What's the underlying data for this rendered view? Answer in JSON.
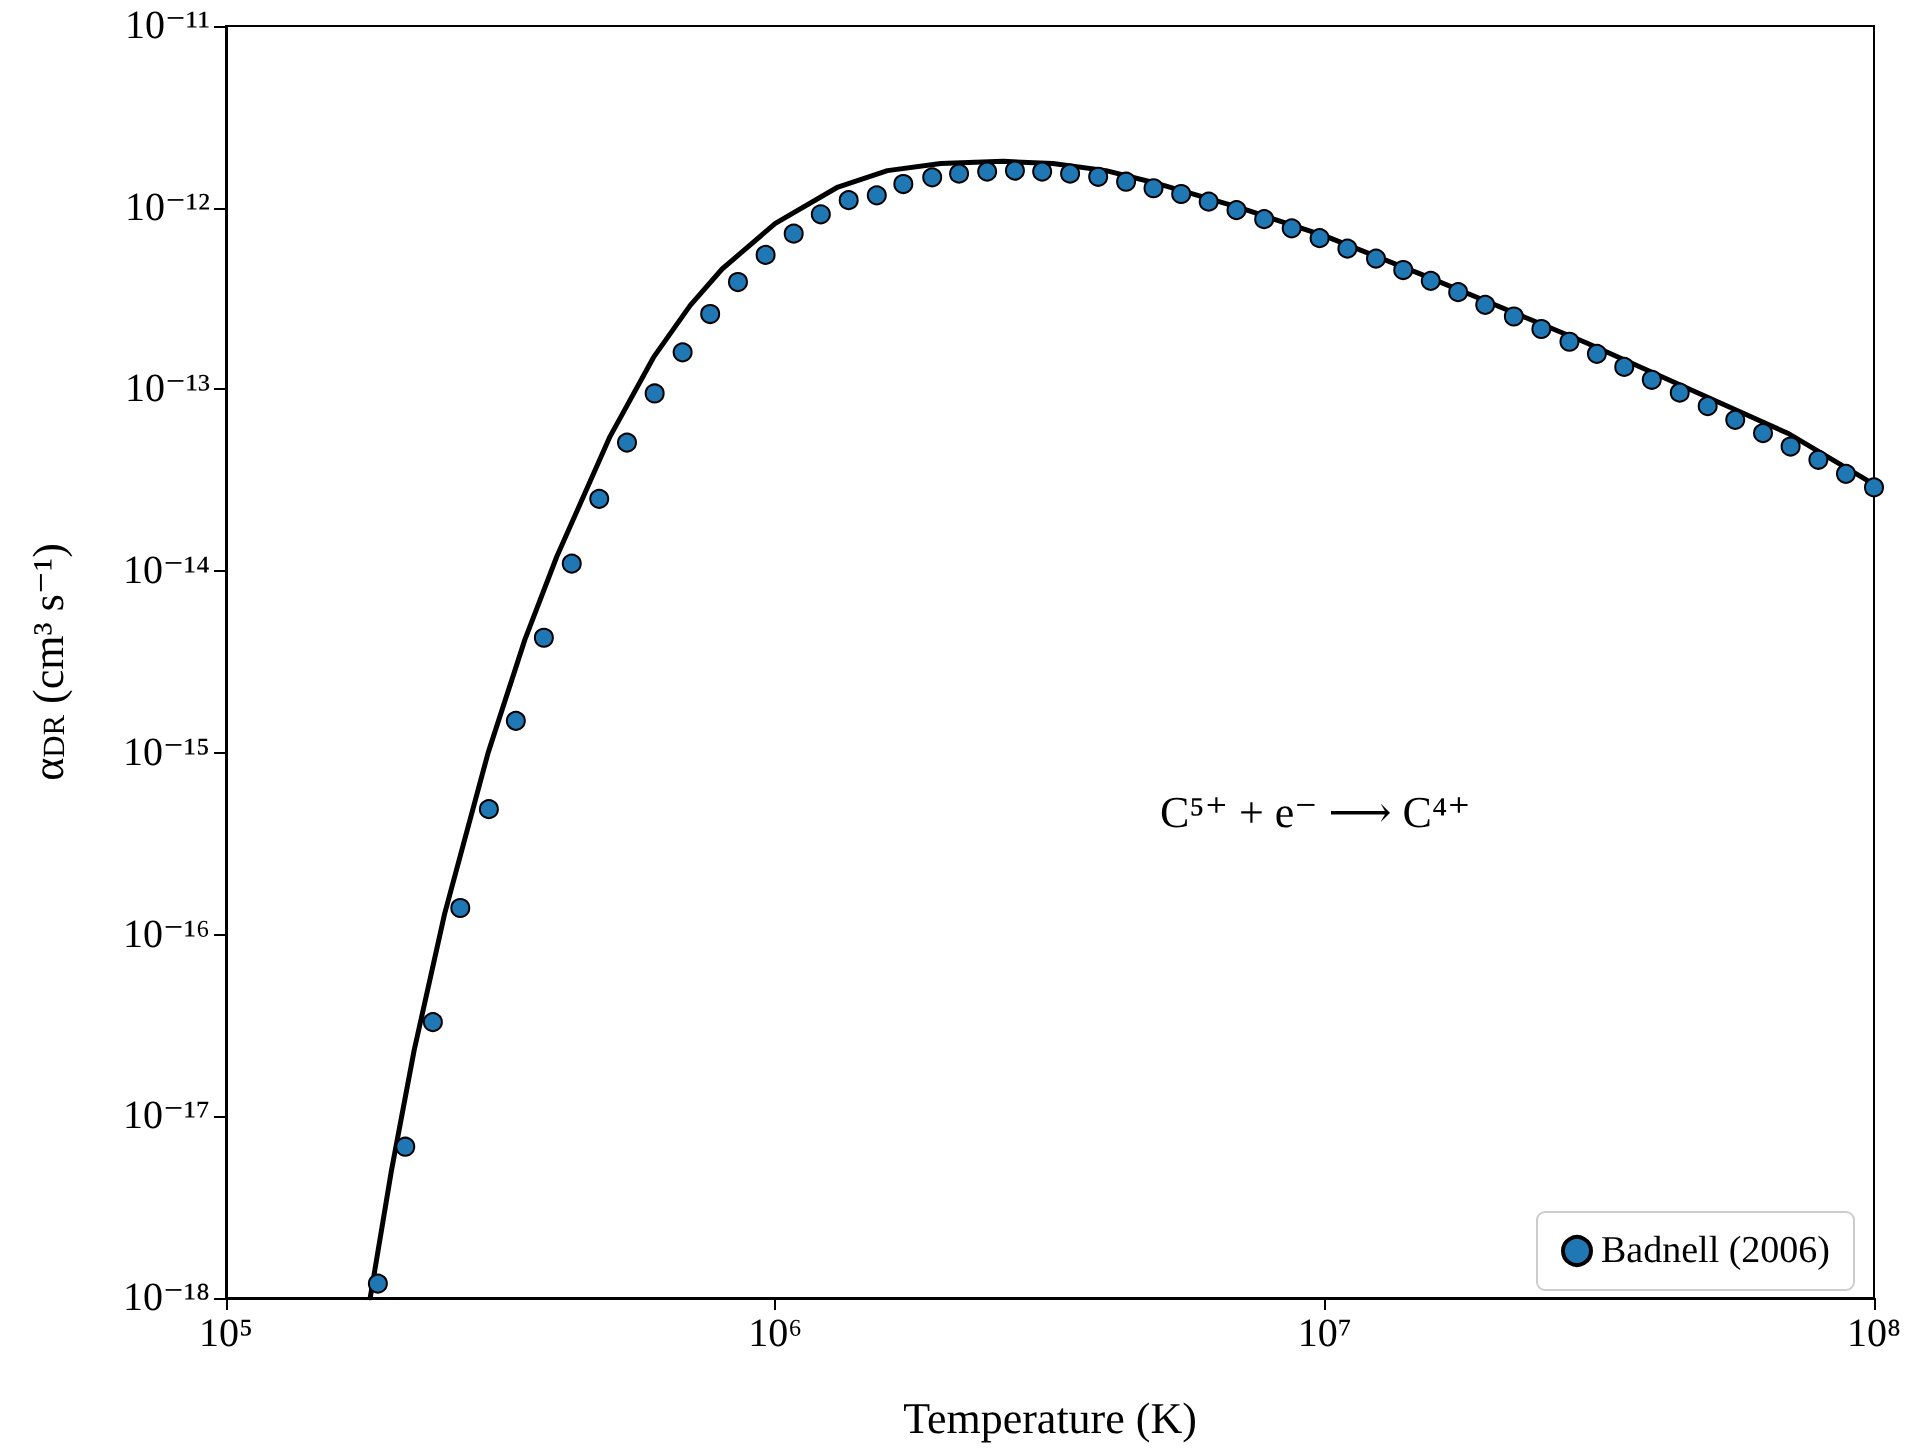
{
  "chart_data": {
    "type": "scatter",
    "xlabel": "Temperature (K)",
    "ylabel": "α$_{DR}$ (cm³ s⁻¹)",
    "annotations": [
      "C⁵⁺ + e⁻ ⟶ C⁴⁺"
    ],
    "log": "xy",
    "grid": false,
    "legend": "bottom right",
    "marker": "circle",
    "xlim": [
      100000,
      100000000
    ],
    "xticks": [
      {
        "value": 100000,
        "label": "10⁵"
      },
      {
        "value": 1000000,
        "label": "10⁶"
      },
      {
        "value": 10000000,
        "label": "10⁷"
      },
      {
        "value": 100000000,
        "label": "10⁸"
      }
    ],
    "ylim": [
      1e-18,
      1e-11
    ],
    "yticks": [
      {
        "value": 1e-18,
        "label": "10⁻¹⁸"
      },
      {
        "value": 1e-17,
        "label": "10⁻¹⁷"
      },
      {
        "value": 1e-16,
        "label": "10⁻¹⁶"
      },
      {
        "value": 1e-15,
        "label": "10⁻¹⁵"
      },
      {
        "value": 1e-14,
        "label": "10⁻¹⁴"
      },
      {
        "value": 1e-13,
        "label": "10⁻¹³"
      },
      {
        "value": 1e-12,
        "label": "10⁻¹²"
      },
      {
        "value": 1e-11,
        "label": "10⁻¹¹"
      }
    ],
    "series": [
      {
        "type": "line",
        "color": "#000000",
        "line_style": "solid",
        "marker": "none",
        "x": [
          183000,
          200000,
          220000,
          250000,
          300000,
          350000,
          400000,
          500000,
          600000,
          700000,
          800000,
          1000000,
          1300000,
          1600000,
          2000000,
          2600000,
          3200000,
          4000000,
          5000000,
          7000000,
          10000000,
          15000000,
          20000000,
          30000000,
          50000000,
          70000000,
          100000000
        ],
        "values": [
          1e-18,
          5e-18,
          2.3e-17,
          1.3e-16,
          1e-15,
          4.2e-15,
          1.2e-14,
          5.5e-14,
          1.5e-13,
          2.9e-13,
          4.6e-13,
          8.2e-13,
          1.3e-12,
          1.6e-12,
          1.75e-12,
          1.8e-12,
          1.75e-12,
          1.6e-12,
          1.35e-12,
          1e-12,
          7e-13,
          4.3e-13,
          3e-13,
          1.8e-13,
          9e-14,
          5.7e-14,
          3e-14
        ]
      },
      {
        "name": "Badnell (2006)",
        "color": "#1f77b4",
        "x": [
          189000,
          212000,
          238000,
          267000,
          301000,
          337000,
          379000,
          426000,
          478000,
          537000,
          603000,
          678000,
          761000,
          855000,
          960000,
          1080000,
          1210000,
          1360000,
          1530000,
          1710000,
          1930000,
          2160000,
          2430000,
          2730000,
          3060000,
          3440000,
          3870000,
          4350000,
          4880000,
          5480000,
          6150000,
          6910000,
          7760000,
          8710000,
          9790000,
          11000000,
          12400000,
          13900000,
          15600000,
          17500000,
          19600000,
          22100000,
          24800000,
          27900000,
          31300000,
          35100000,
          39400000,
          44300000,
          49800000,
          55900000,
          62800000,
          70500000,
          79200000,
          88900000,
          100000000
        ],
        "values": [
          1.2e-18,
          6.8e-18,
          3.3e-17,
          1.4e-16,
          4.9e-16,
          1.5e-15,
          4.3e-15,
          1.1e-14,
          2.5e-14,
          5.1e-14,
          9.5e-14,
          1.6e-13,
          2.6e-13,
          3.9e-13,
          5.5e-13,
          7.2e-13,
          9.2e-13,
          1.1e-12,
          1.17e-12,
          1.35e-12,
          1.47e-12,
          1.54e-12,
          1.58e-12,
          1.6e-12,
          1.58e-12,
          1.54e-12,
          1.48e-12,
          1.39e-12,
          1.28e-12,
          1.19e-12,
          1.08e-12,
          9.7e-13,
          8.65e-13,
          7.7e-13,
          6.8e-13,
          5.96e-13,
          5.25e-13,
          4.54e-13,
          3.96e-13,
          3.43e-13,
          2.92e-13,
          2.52e-13,
          2.15e-13,
          1.83e-13,
          1.57e-13,
          1.33e-13,
          1.13e-13,
          9.6e-14,
          8.1e-14,
          6.8e-14,
          5.75e-14,
          4.85e-14,
          4.1e-14,
          3.43e-14,
          2.89e-14
        ]
      }
    ]
  }
}
